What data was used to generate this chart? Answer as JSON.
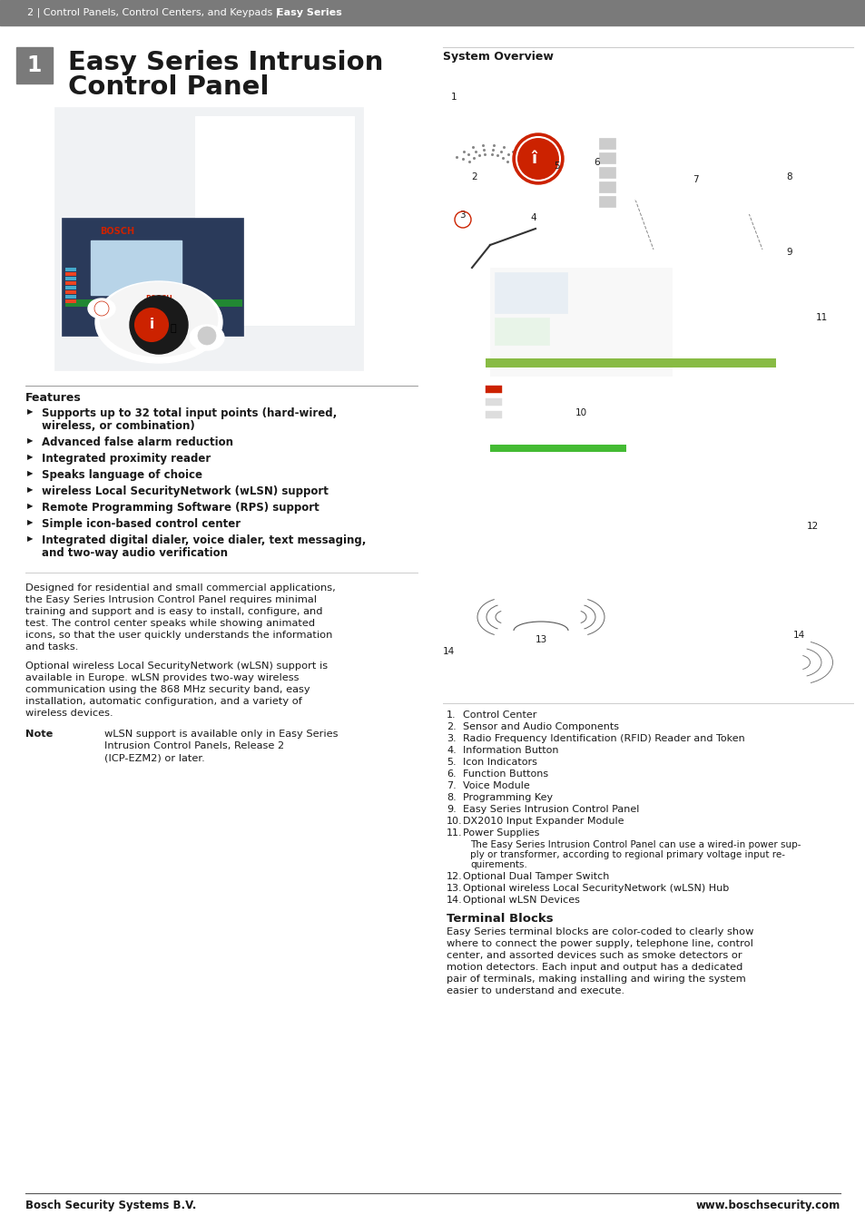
{
  "header_bg": "#7a7a7a",
  "page_bg": "#ffffff",
  "chapter_num_bg": "#7a7a7a",
  "chapter_num_color": "#ffffff",
  "title_line1": "Easy Series Intrusion",
  "title_line2": "Control Panel",
  "title_color": "#1a1a1a",
  "section_title_right": "System Overview",
  "features_title": "Features",
  "feature_list": [
    [
      "Supports up to 32 total input points (hard-wired,",
      "wireless, or combination)"
    ],
    [
      "Advanced false alarm reduction"
    ],
    [
      "Integrated proximity reader"
    ],
    [
      "Speaks language of choice"
    ],
    [
      "wireless Local SecurityNetwork (wLSN) support"
    ],
    [
      "Remote Programming Software (RPS) support"
    ],
    [
      "Simple icon-based control center"
    ],
    [
      "Integrated digital dialer, voice dialer, text messaging,",
      "and two-way audio verification"
    ]
  ],
  "para1_lines": [
    "Designed for residential and small commercial applications,",
    "the Easy Series Intrusion Control Panel requires minimal",
    "training and support and is easy to install, configure, and",
    "test. The control center speaks while showing animated",
    "icons, so that the user quickly understands the information",
    "and tasks."
  ],
  "para2_lines": [
    "Optional wireless Local SecurityNetwork (wLSN) support is",
    "available in Europe. wLSN provides two-way wireless",
    "communication using the 868 MHz security band, easy",
    "installation, automatic configuration, and a variety of",
    "wireless devices."
  ],
  "note_label": "Note",
  "note_lines": [
    "wLSN support is available only in Easy Series",
    "Intrusion Control Panels, Release 2",
    "(ICP-EZM2) or later."
  ],
  "numbered_items": [
    {
      "num": "1.",
      "text": "Control Center"
    },
    {
      "num": "2.",
      "text": "Sensor and Audio Components"
    },
    {
      "num": "3.",
      "text": "Radio Frequency Identification (RFID) Reader and Token"
    },
    {
      "num": "4.",
      "text": "Information Button"
    },
    {
      "num": "5.",
      "text": "Icon Indicators"
    },
    {
      "num": "6.",
      "text": "Function Buttons"
    },
    {
      "num": "7.",
      "text": "Voice Module"
    },
    {
      "num": "8.",
      "text": "Programming Key"
    },
    {
      "num": "9.",
      "text": "Easy Series Intrusion Control Panel"
    },
    {
      "num": "10.",
      "text": "DX2010 Input Expander Module"
    },
    {
      "num": "11.",
      "text": "Power Supplies",
      "sub": [
        "The Easy Series Intrusion Control Panel can use a wired-in power sup-",
        "ply or transformer, according to regional primary voltage input re-",
        "quirements."
      ]
    },
    {
      "num": "12.",
      "text": "Optional Dual Tamper Switch"
    },
    {
      "num": "13.",
      "text": "Optional wireless Local SecurityNetwork (wLSN) Hub"
    },
    {
      "num": "14.",
      "text": "Optional wLSN Devices"
    }
  ],
  "terminal_title": "Terminal Blocks",
  "terminal_lines": [
    "Easy Series terminal blocks are color-coded to clearly show",
    "where to connect the power supply, telephone line, control",
    "center, and assorted devices such as smoke detectors or",
    "motion detectors. Each input and output has a dedicated",
    "pair of terminals, making installing and wiring the system",
    "easier to understand and execute."
  ],
  "footer_left": "Bosch Security Systems B.V.",
  "footer_right": "www.boschsecurity.com",
  "accent_red": "#cc2200",
  "text_color": "#1a1a1a",
  "gray_mid": "#888888",
  "gray_light": "#cccccc",
  "header_text_normal": "2 | Control Panels, Control Centers, and Keypads | ",
  "header_text_bold": "Easy Series"
}
